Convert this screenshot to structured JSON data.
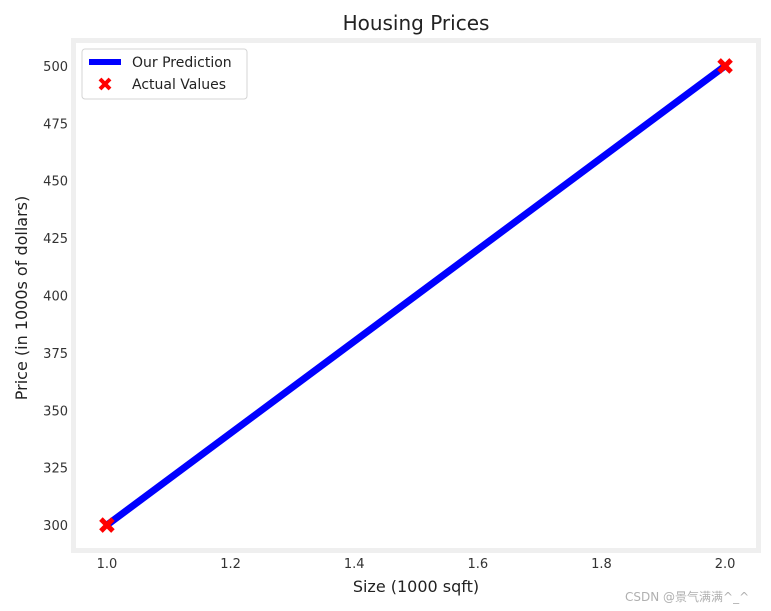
{
  "chart_data": {
    "type": "line",
    "title": "Housing Prices",
    "xlabel": "Size (1000 sqft)",
    "ylabel": "Price (in 1000s of dollars)",
    "xlim": [
      0.95,
      2.05
    ],
    "ylim": [
      290,
      510
    ],
    "x_ticks": [
      1.0,
      1.2,
      1.4,
      1.6,
      1.8,
      2.0
    ],
    "x_tick_labels": [
      "1.0",
      "1.2",
      "1.4",
      "1.6",
      "1.8",
      "2.0"
    ],
    "y_ticks": [
      300,
      325,
      350,
      375,
      400,
      425,
      450,
      475,
      500
    ],
    "y_tick_labels": [
      "300",
      "325",
      "350",
      "375",
      "400",
      "425",
      "450",
      "475",
      "500"
    ],
    "grid": false,
    "legend_position": "top-left",
    "series": [
      {
        "name": "Our Prediction",
        "kind": "line",
        "color": "#0000ff",
        "x": [
          1.0,
          2.0
        ],
        "y": [
          300,
          500
        ]
      },
      {
        "name": "Actual Values",
        "kind": "scatter",
        "marker": "x",
        "color": "#ff0000",
        "x": [
          1.0,
          2.0
        ],
        "y": [
          300,
          500
        ]
      }
    ]
  },
  "watermark": "CSDN @景气满满^_^"
}
